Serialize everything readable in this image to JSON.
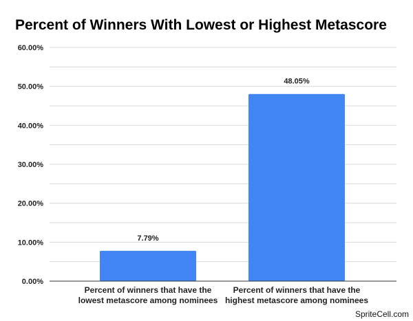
{
  "chart_data": {
    "type": "bar",
    "title": "Percent of Winners With Lowest or Highest Metascore",
    "xlabel": "",
    "ylabel": "",
    "categories": [
      [
        "Percent of winners that have the",
        "lowest metascore among nominees"
      ],
      [
        "Percent of winners that have the",
        "highest metascore among nominees"
      ]
    ],
    "values": [
      7.79,
      48.05
    ],
    "data_labels": [
      "7.79%",
      "48.05%"
    ],
    "ylim": [
      0,
      60
    ],
    "y_ticks": [
      0,
      10,
      20,
      30,
      40,
      50,
      60
    ],
    "y_tick_labels": [
      "0.00%",
      "10.00%",
      "20.00%",
      "30.00%",
      "40.00%",
      "50.00%",
      "60.00%"
    ],
    "minor_gridlines": true,
    "grid": true,
    "legend": "none",
    "bar_color": "#4285f4"
  },
  "watermark": "SpriteCell.com"
}
